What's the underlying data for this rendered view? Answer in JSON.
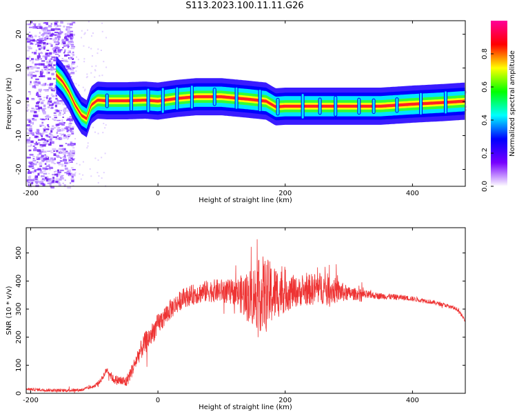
{
  "title": "S113.2023.100.11.11.G26",
  "chart_data": [
    {
      "type": "heatmap",
      "title": "S113.2023.100.11.11.G26",
      "xlabel": "Height of straight line (km)",
      "ylabel": "Frequency (Hz)",
      "xlim": [
        -207,
        483
      ],
      "ylim": [
        -25,
        24
      ],
      "xticks": [
        -200,
        0,
        200,
        400
      ],
      "yticks": [
        -20,
        -10,
        0,
        10,
        20
      ],
      "colorbar": {
        "label": "Normalized spectral amplitude",
        "range": [
          0,
          1
        ],
        "ticks": [
          "0.0",
          "0.2",
          "0.4",
          "0.6",
          "0.8"
        ],
        "colors": [
          "#ffffff",
          "#7700ff",
          "#0000ff",
          "#00ffff",
          "#00ff00",
          "#ffff00",
          "#ff0000",
          "#ff0099"
        ]
      },
      "ridge": {
        "x": [
          -160,
          -150,
          -140,
          -130,
          -120,
          -112,
          -105,
          -95,
          -80,
          -50,
          -20,
          0,
          30,
          60,
          100,
          140,
          170,
          185,
          200,
          250,
          300,
          350,
          400,
          450,
          483
        ],
        "y": [
          8,
          6,
          3,
          -1,
          -4,
          -5,
          -1,
          0.5,
          0.3,
          0.3,
          0.5,
          0.2,
          1,
          1.5,
          1.5,
          0.8,
          0.2,
          -1.5,
          -1.3,
          -1.3,
          -1.3,
          -1.3,
          -0.7,
          -0.2,
          0.2
        ]
      },
      "noise_region": {
        "x": [
          -207,
          -145
        ],
        "y": [
          -25,
          24
        ]
      },
      "grid": false
    },
    {
      "type": "line",
      "title": "",
      "xlabel": "Height of straight line (km)",
      "ylabel": "SNR (10 * v/v)",
      "xlim": [
        -207,
        483
      ],
      "ylim": [
        0,
        590
      ],
      "xticks": [
        -200,
        0,
        200,
        400
      ],
      "yticks": [
        0,
        100,
        200,
        300,
        400,
        500
      ],
      "line_color": "#ee3333",
      "envelope": {
        "x": [
          -207,
          -180,
          -150,
          -120,
          -100,
          -90,
          -80,
          -70,
          -60,
          -50,
          -40,
          -30,
          -20,
          -10,
          0,
          20,
          40,
          60,
          80,
          100,
          120,
          140,
          160,
          180,
          200,
          220,
          240,
          260,
          280,
          300,
          330,
          360,
          390,
          420,
          450,
          470,
          483
        ],
        "y": [
          15,
          12,
          10,
          12,
          25,
          45,
          85,
          50,
          45,
          40,
          85,
          140,
          180,
          210,
          245,
          300,
          340,
          355,
          365,
          365,
          360,
          345,
          350,
          355,
          365,
          360,
          370,
          375,
          365,
          355,
          350,
          345,
          340,
          330,
          315,
          300,
          260
        ]
      },
      "amplitude": {
        "x": [
          -207,
          -100,
          -40,
          -20,
          40,
          80,
          120,
          140,
          165,
          190,
          220,
          250,
          270,
          300,
          340,
          420,
          483
        ],
        "y": [
          5,
          6,
          25,
          40,
          35,
          40,
          45,
          90,
          140,
          90,
          50,
          60,
          55,
          25,
          12,
          8,
          6
        ]
      },
      "grid": false
    }
  ]
}
